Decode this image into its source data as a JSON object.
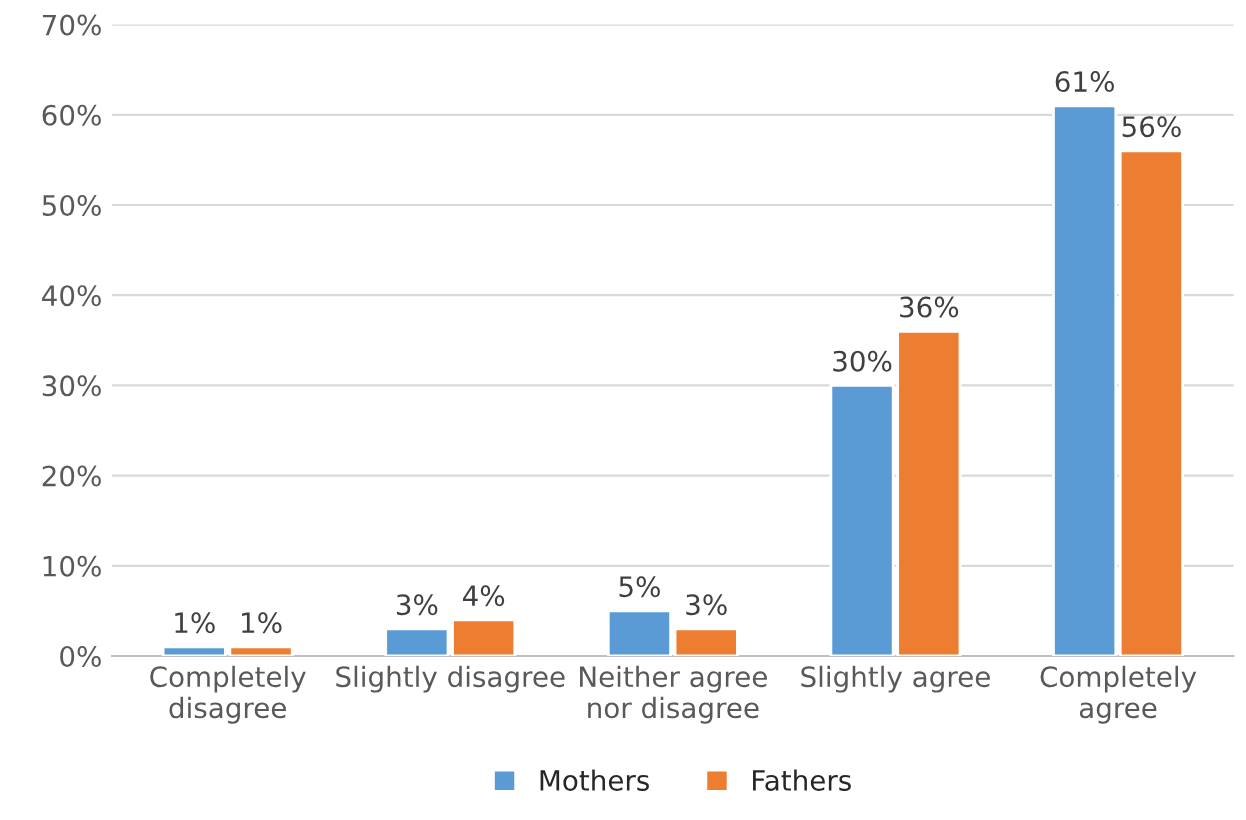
{
  "chart_data": {
    "type": "bar",
    "categories": [
      "Completely\ndisagree",
      "Slightly disagree",
      "Neither agree\nnor disagree",
      "Slightly agree",
      "Completely\nagree"
    ],
    "series": [
      {
        "name": "Mothers",
        "color": "#5b9bd5",
        "values": [
          1,
          3,
          5,
          30,
          61
        ],
        "value_labels": [
          "1%",
          "3%",
          "5%",
          "30%",
          "61%"
        ]
      },
      {
        "name": "Fathers",
        "color": "#ed7d31",
        "values": [
          1,
          4,
          3,
          36,
          56
        ],
        "value_labels": [
          "1%",
          "4%",
          "3%",
          "36%",
          "56%"
        ]
      }
    ],
    "ylim": [
      0,
      70
    ],
    "yticks": [
      {
        "value": 0,
        "label": "0%"
      },
      {
        "value": 10,
        "label": "10%"
      },
      {
        "value": 20,
        "label": "20%"
      },
      {
        "value": 30,
        "label": "30%"
      },
      {
        "value": 40,
        "label": "40%"
      },
      {
        "value": 50,
        "label": "50%"
      },
      {
        "value": 60,
        "label": "60%"
      },
      {
        "value": 70,
        "label": "70%"
      }
    ],
    "grid": "y",
    "legend": "bottom"
  }
}
